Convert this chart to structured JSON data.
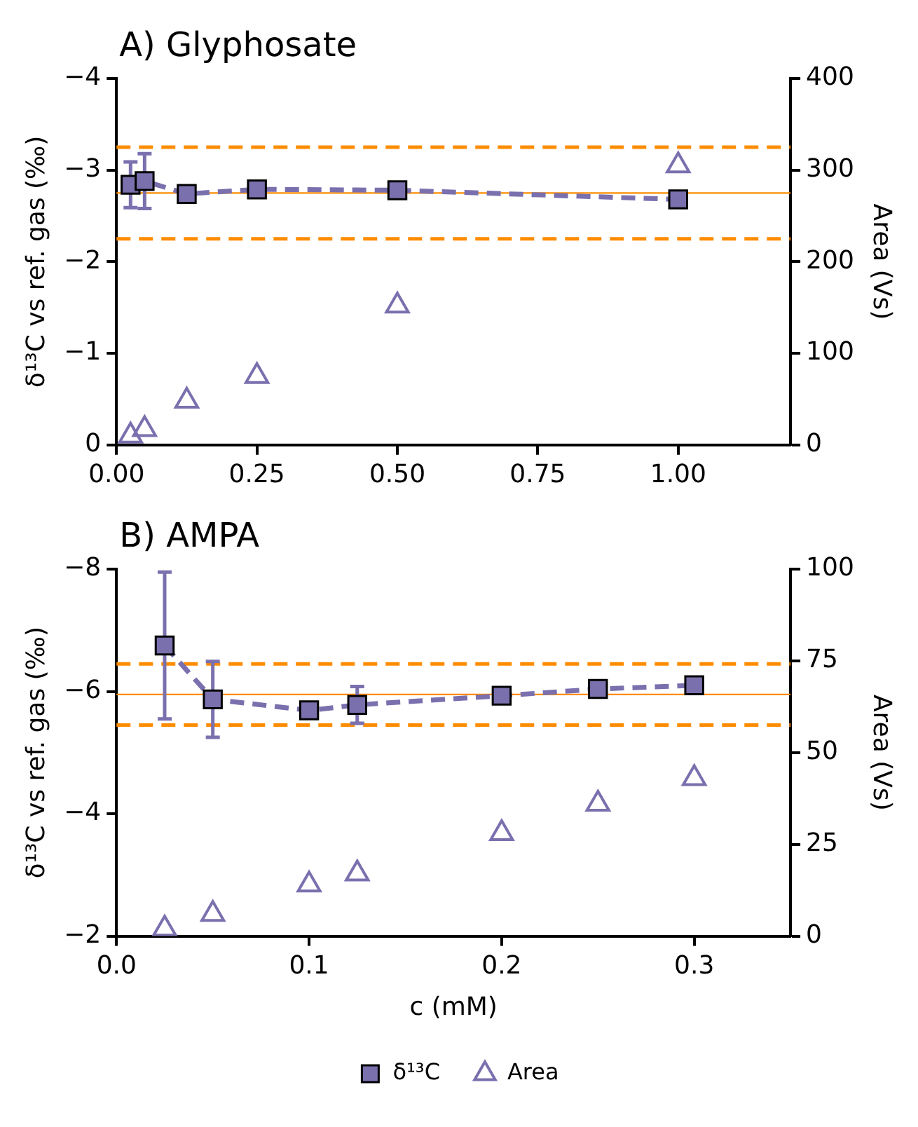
{
  "chart_data": [
    {
      "type": "line",
      "title": "A) Glyphosate",
      "ylabel": "δ¹³C vs ref. gas (‰)",
      "y2label": "Area (Vs)",
      "x": [
        0.025,
        0.05,
        0.125,
        0.25,
        0.5,
        1.0
      ],
      "series": [
        {
          "type": "line",
          "color": "#7b70ae",
          "marker": "square",
          "line_style": "dashed",
          "values": [
            -2.84,
            -2.88,
            -2.74,
            -2.79,
            -2.78,
            -2.68
          ],
          "errors": [
            0.25,
            0.3,
            null,
            null,
            null,
            null
          ]
        },
        {
          "type": "scatter",
          "axis": "y2",
          "color": "#7b70ae",
          "marker": "triangle",
          "values": [
            10,
            17,
            48,
            75,
            152,
            305
          ]
        }
      ],
      "xlim": [
        0,
        1.2
      ],
      "xticks": [
        {
          "value": 0,
          "label": "0.00"
        },
        {
          "value": 0.25,
          "label": "0.25"
        },
        {
          "value": 0.5,
          "label": "0.50"
        },
        {
          "value": 0.75,
          "label": "0.75"
        },
        {
          "value": 1,
          "label": "1.00"
        }
      ],
      "ylim": [
        0,
        -4
      ],
      "yticks": [
        0,
        {
          "value": -1,
          "label": "−1"
        },
        {
          "value": -2,
          "label": "−2"
        },
        {
          "value": -3,
          "label": "−3"
        },
        {
          "value": -4,
          "label": "−4"
        }
      ],
      "y2lim": [
        0,
        400
      ],
      "y2ticks": [
        0,
        100,
        200,
        300,
        400
      ],
      "ref_lines": [
        {
          "axis": "y",
          "value": -3.25,
          "color": "#ff8c00",
          "line_style": "dashed"
        },
        {
          "axis": "y",
          "value": -2.75,
          "color": "#ff8c00",
          "line_style": "solid"
        },
        {
          "axis": "y",
          "value": -2.25,
          "color": "#ff8c00",
          "line_style": "dashed"
        }
      ],
      "grid": false,
      "legend": false
    },
    {
      "type": "line",
      "title": "B) AMPA",
      "xlabel": "c (mM)",
      "ylabel": "δ¹³C vs ref. gas (‰)",
      "y2label": "Area (Vs)",
      "x": [
        0.025,
        0.05,
        0.1,
        0.125,
        0.2,
        0.25,
        0.3
      ],
      "series": [
        {
          "name": "δ¹³C",
          "type": "line",
          "color": "#7b70ae",
          "marker": "square",
          "line_style": "dashed",
          "values": [
            -6.75,
            -5.87,
            -5.69,
            -5.78,
            -5.93,
            -6.04,
            -6.1
          ],
          "errors": [
            1.2,
            0.62,
            null,
            0.3,
            null,
            null,
            null
          ]
        },
        {
          "name": "Area",
          "type": "scatter",
          "axis": "y2",
          "color": "#7b70ae",
          "marker": "triangle",
          "values": [
            2,
            6,
            14,
            17,
            28,
            36,
            43
          ]
        }
      ],
      "xlim": [
        0,
        0.35
      ],
      "xticks": [
        {
          "value": 0,
          "label": "0.0"
        },
        0.1,
        0.2,
        0.3
      ],
      "ylim": [
        -2,
        -8
      ],
      "yticks": [
        {
          "value": -2,
          "label": "−2"
        },
        {
          "value": -4,
          "label": "−4"
        },
        {
          "value": -6,
          "label": "−6"
        },
        {
          "value": -8,
          "label": "−8"
        }
      ],
      "y2lim": [
        0,
        100
      ],
      "y2ticks": [
        0,
        25,
        50,
        75,
        100
      ],
      "ref_lines": [
        {
          "axis": "y",
          "value": -6.45,
          "color": "#ff8c00",
          "line_style": "dashed"
        },
        {
          "axis": "y",
          "value": -5.95,
          "color": "#ff8c00",
          "line_style": "solid"
        },
        {
          "axis": "y",
          "value": -5.45,
          "color": "#ff8c00",
          "line_style": "dashed"
        }
      ],
      "grid": false,
      "legend": "bottom"
    }
  ]
}
